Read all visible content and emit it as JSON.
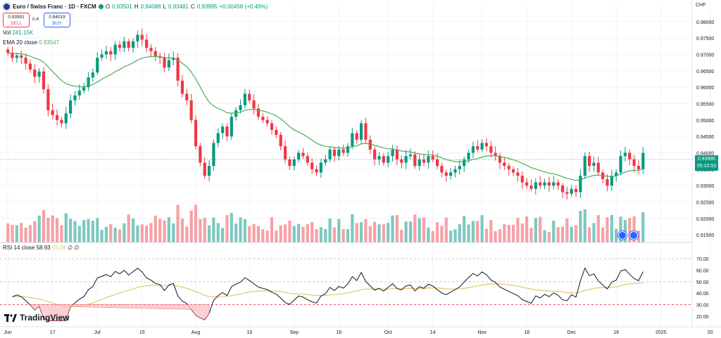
{
  "header": {
    "symbol_title": "Euro / Swiss Franc · 1D · FXCM",
    "open_label": "O",
    "open": "0.93501",
    "high_label": "H",
    "high": "0.94088",
    "low_label": "L",
    "low": "0.93481",
    "close_label": "C",
    "close": "0.93995",
    "change": "+0.00458 (+0.49%)"
  },
  "trade": {
    "sell_price": "0.93991",
    "sell_label": "SELL",
    "spread": "0.4",
    "buy_price": "0.94019",
    "buy_label": "BUY"
  },
  "indicators": {
    "vol_label": "Vol",
    "vol_value": "241.15K",
    "ema_label": "EMA 20 close",
    "ema_value": "0.93547",
    "rsi_label": "RSI 14 close",
    "rsi_value": "58.93",
    "rsi_ma_value": "55.08",
    "rsi_extra": "∅ ∅"
  },
  "price_axis": {
    "currency": "CHF",
    "last_price": "0.93995",
    "countdown": "05:10:53"
  },
  "logo": "TradingView",
  "colors": {
    "up": "#089981",
    "down": "#f23645",
    "ema": "#4caf50",
    "rsi": "#131722",
    "rsi_ma": "#e3c76b",
    "rsi_band": "#f23645",
    "up_vol": "#7cc9bf",
    "down_vol": "#f7a1a6"
  },
  "chart_data": {
    "type": "candlestick",
    "title": "Euro / Swiss Franc · 1D · FXCM",
    "ylim": [
      0.91267,
      0.98553
    ],
    "y_ticks": [
      "0.98000",
      "0.97500",
      "0.97000",
      "0.96500",
      "0.96000",
      "0.95500",
      "0.95000",
      "0.94500",
      "0.94000",
      "0.93500",
      "0.93000",
      "0.92500",
      "0.92000",
      "0.91500"
    ],
    "x_ticks": [
      "Jun",
      "17",
      "Jul",
      "15",
      "Aug",
      "19",
      "Sep",
      "16",
      "Oct",
      "14",
      "Nov",
      "18",
      "Dec",
      "16",
      "2025",
      "20"
    ],
    "x_tick_index": [
      0,
      10,
      20,
      30,
      42,
      54,
      64,
      74,
      85,
      95,
      106,
      116,
      126,
      136,
      146,
      157
    ],
    "closes": [
      0.9705,
      0.9689,
      0.9697,
      0.969,
      0.9672,
      0.9654,
      0.9632,
      0.9648,
      0.9594,
      0.953,
      0.9515,
      0.95,
      0.949,
      0.952,
      0.956,
      0.9575,
      0.959,
      0.96,
      0.963,
      0.9645,
      0.969,
      0.97,
      0.971,
      0.97,
      0.973,
      0.972,
      0.974,
      0.972,
      0.974,
      0.976,
      0.9745,
      0.972,
      0.971,
      0.9695,
      0.969,
      0.966,
      0.9683,
      0.969,
      0.962,
      0.958,
      0.956,
      0.95,
      0.942,
      0.937,
      0.933,
      0.936,
      0.943,
      0.946,
      0.948,
      0.945,
      0.951,
      0.953,
      0.9545,
      0.958,
      0.956,
      0.9535,
      0.951,
      0.95,
      0.949,
      0.947,
      0.9455,
      0.942,
      0.938,
      0.936,
      0.938,
      0.94,
      0.939,
      0.937,
      0.935,
      0.934,
      0.937,
      0.938,
      0.941,
      0.939,
      0.941,
      0.94,
      0.942,
      0.946,
      0.944,
      0.949,
      0.944,
      0.941,
      0.938,
      0.939,
      0.937,
      0.939,
      0.941,
      0.938,
      0.937,
      0.939,
      0.9395,
      0.936,
      0.938,
      0.937,
      0.939,
      0.938,
      0.936,
      0.934,
      0.933,
      0.934,
      0.935,
      0.936,
      0.938,
      0.94,
      0.942,
      0.941,
      0.943,
      0.942,
      0.94,
      0.939,
      0.937,
      0.936,
      0.935,
      0.934,
      0.933,
      0.931,
      0.93,
      0.929,
      0.931,
      0.93,
      0.931,
      0.93,
      0.931,
      0.93,
      0.928,
      0.9275,
      0.929,
      0.928,
      0.933,
      0.939,
      0.936,
      0.937,
      0.934,
      0.932,
      0.93,
      0.933,
      0.934,
      0.939,
      0.94,
      0.938,
      0.936,
      0.935,
      0.94
    ]
  }
}
